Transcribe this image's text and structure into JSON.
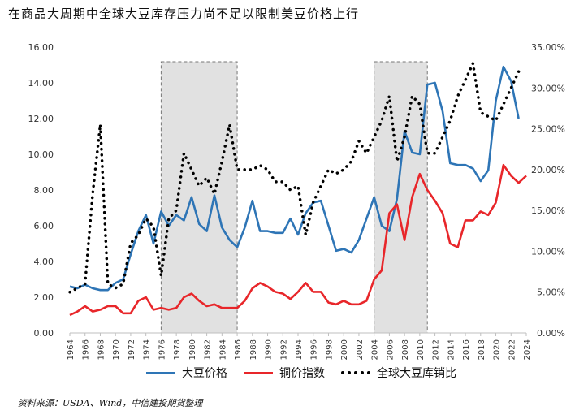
{
  "title": "在商品大周期中全球大豆库存压力尚不足以限制美豆价格上行",
  "source": "资料来源：USDA、Wind，中信建投期货整理",
  "chart_data": {
    "type": "line",
    "x_start": 1964,
    "x_end": 2024,
    "x_ticks": [
      "1964",
      "1966",
      "1968",
      "1970",
      "1972",
      "1974",
      "1976",
      "1978",
      "1980",
      "1982",
      "1984",
      "1986",
      "1988",
      "1990",
      "1992",
      "1994",
      "1996",
      "1998",
      "2000",
      "2002",
      "2004",
      "2006",
      "2008",
      "2010",
      "2012",
      "2014",
      "2016",
      "2018",
      "2020",
      "2022",
      "2024"
    ],
    "left_axis": {
      "ylim": [
        0,
        16
      ],
      "ticks": [
        "0.00",
        "2.00",
        "4.00",
        "6.00",
        "8.00",
        "10.00",
        "12.00",
        "14.00",
        "16.00"
      ]
    },
    "right_axis": {
      "ylim": [
        0,
        0.35
      ],
      "ticks": [
        "0.00%",
        "5.00%",
        "10.00%",
        "15.00%",
        "20.00%",
        "25.00%",
        "30.00%",
        "35.00%"
      ]
    },
    "shaded_periods": [
      [
        1976,
        1986
      ],
      [
        2004,
        2011
      ]
    ],
    "series": [
      {
        "name": "大豆价格",
        "color": "#2e75b6",
        "axis": "left",
        "style": "solid",
        "values": [
          2.6,
          2.5,
          2.7,
          2.5,
          2.4,
          2.4,
          2.8,
          3.0,
          4.4,
          5.7,
          6.6,
          5.0,
          6.8,
          6.0,
          6.6,
          6.3,
          7.6,
          6.1,
          5.7,
          7.7,
          5.9,
          5.2,
          4.8,
          5.9,
          7.4,
          5.7,
          5.7,
          5.6,
          5.6,
          6.4,
          5.5,
          6.7,
          7.3,
          7.4,
          6.0,
          4.6,
          4.7,
          4.5,
          5.2,
          6.4,
          7.6,
          6.0,
          5.7,
          7.5,
          11.3,
          10.1,
          10.0,
          13.9,
          14.0,
          12.4,
          9.5,
          9.4,
          9.4,
          9.2,
          8.5,
          9.1,
          13.0,
          14.9,
          14.1,
          12.0
        ]
      },
      {
        "name": "铜价指数",
        "color": "#e8262a",
        "axis": "left",
        "style": "solid",
        "values": [
          1.0,
          1.2,
          1.5,
          1.2,
          1.3,
          1.5,
          1.5,
          1.1,
          1.1,
          1.8,
          2.0,
          1.3,
          1.4,
          1.3,
          1.4,
          2.0,
          2.2,
          1.8,
          1.5,
          1.6,
          1.4,
          1.4,
          1.4,
          1.8,
          2.5,
          2.8,
          2.6,
          2.3,
          2.2,
          1.9,
          2.3,
          2.8,
          2.3,
          2.3,
          1.7,
          1.6,
          1.8,
          1.6,
          1.6,
          1.8,
          3.0,
          3.5,
          6.7,
          7.2,
          5.2,
          7.6,
          8.9,
          8.0,
          7.4,
          6.7,
          5.0,
          4.8,
          6.3,
          6.3,
          6.8,
          6.6,
          7.3,
          9.4,
          8.8,
          8.4,
          8.8
        ]
      },
      {
        "name": "全球大豆库销比",
        "color": "#000000",
        "axis": "right",
        "style": "dotted",
        "values": [
          0.05,
          0.055,
          0.06,
          0.17,
          0.255,
          0.06,
          0.055,
          0.06,
          0.11,
          0.12,
          0.14,
          0.13,
          0.07,
          0.14,
          0.15,
          0.22,
          0.2,
          0.18,
          0.19,
          0.17,
          0.21,
          0.255,
          0.2,
          0.2,
          0.2,
          0.205,
          0.2,
          0.185,
          0.185,
          0.175,
          0.18,
          0.12,
          0.16,
          0.18,
          0.2,
          0.195,
          0.2,
          0.21,
          0.235,
          0.22,
          0.24,
          0.26,
          0.29,
          0.21,
          0.24,
          0.29,
          0.28,
          0.22,
          0.22,
          0.24,
          0.26,
          0.29,
          0.31,
          0.33,
          0.27,
          0.265,
          0.26,
          0.28,
          0.3,
          0.32
        ]
      }
    ]
  }
}
